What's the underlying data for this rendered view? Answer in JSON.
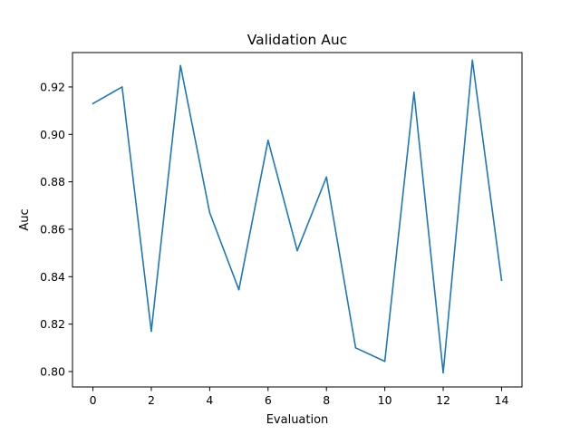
{
  "chart_data": {
    "type": "line",
    "title": "Validation Auc",
    "xlabel": "Evaluation",
    "ylabel": "Auc",
    "xlim": [
      -0.7,
      14.7
    ],
    "ylim": [
      0.7935,
      0.9345
    ],
    "xticks": [
      0,
      2,
      4,
      6,
      8,
      10,
      12,
      14
    ],
    "yticks": [
      0.8,
      0.82,
      0.84,
      0.86,
      0.88,
      0.9,
      0.92
    ],
    "ytick_labels": [
      "0.80",
      "0.82",
      "0.84",
      "0.86",
      "0.88",
      "0.90",
      "0.92"
    ],
    "grid": false,
    "series": [
      {
        "color": "#1f77b4",
        "x": [
          0,
          1,
          2,
          3,
          4,
          5,
          6,
          7,
          8,
          9,
          10,
          11,
          12,
          13,
          14
        ],
        "values": [
          0.913,
          0.92,
          0.817,
          0.929,
          0.867,
          0.8345,
          0.8975,
          0.851,
          0.882,
          0.81,
          0.8043,
          0.9177,
          0.7995,
          0.9313,
          0.8385
        ]
      }
    ]
  }
}
